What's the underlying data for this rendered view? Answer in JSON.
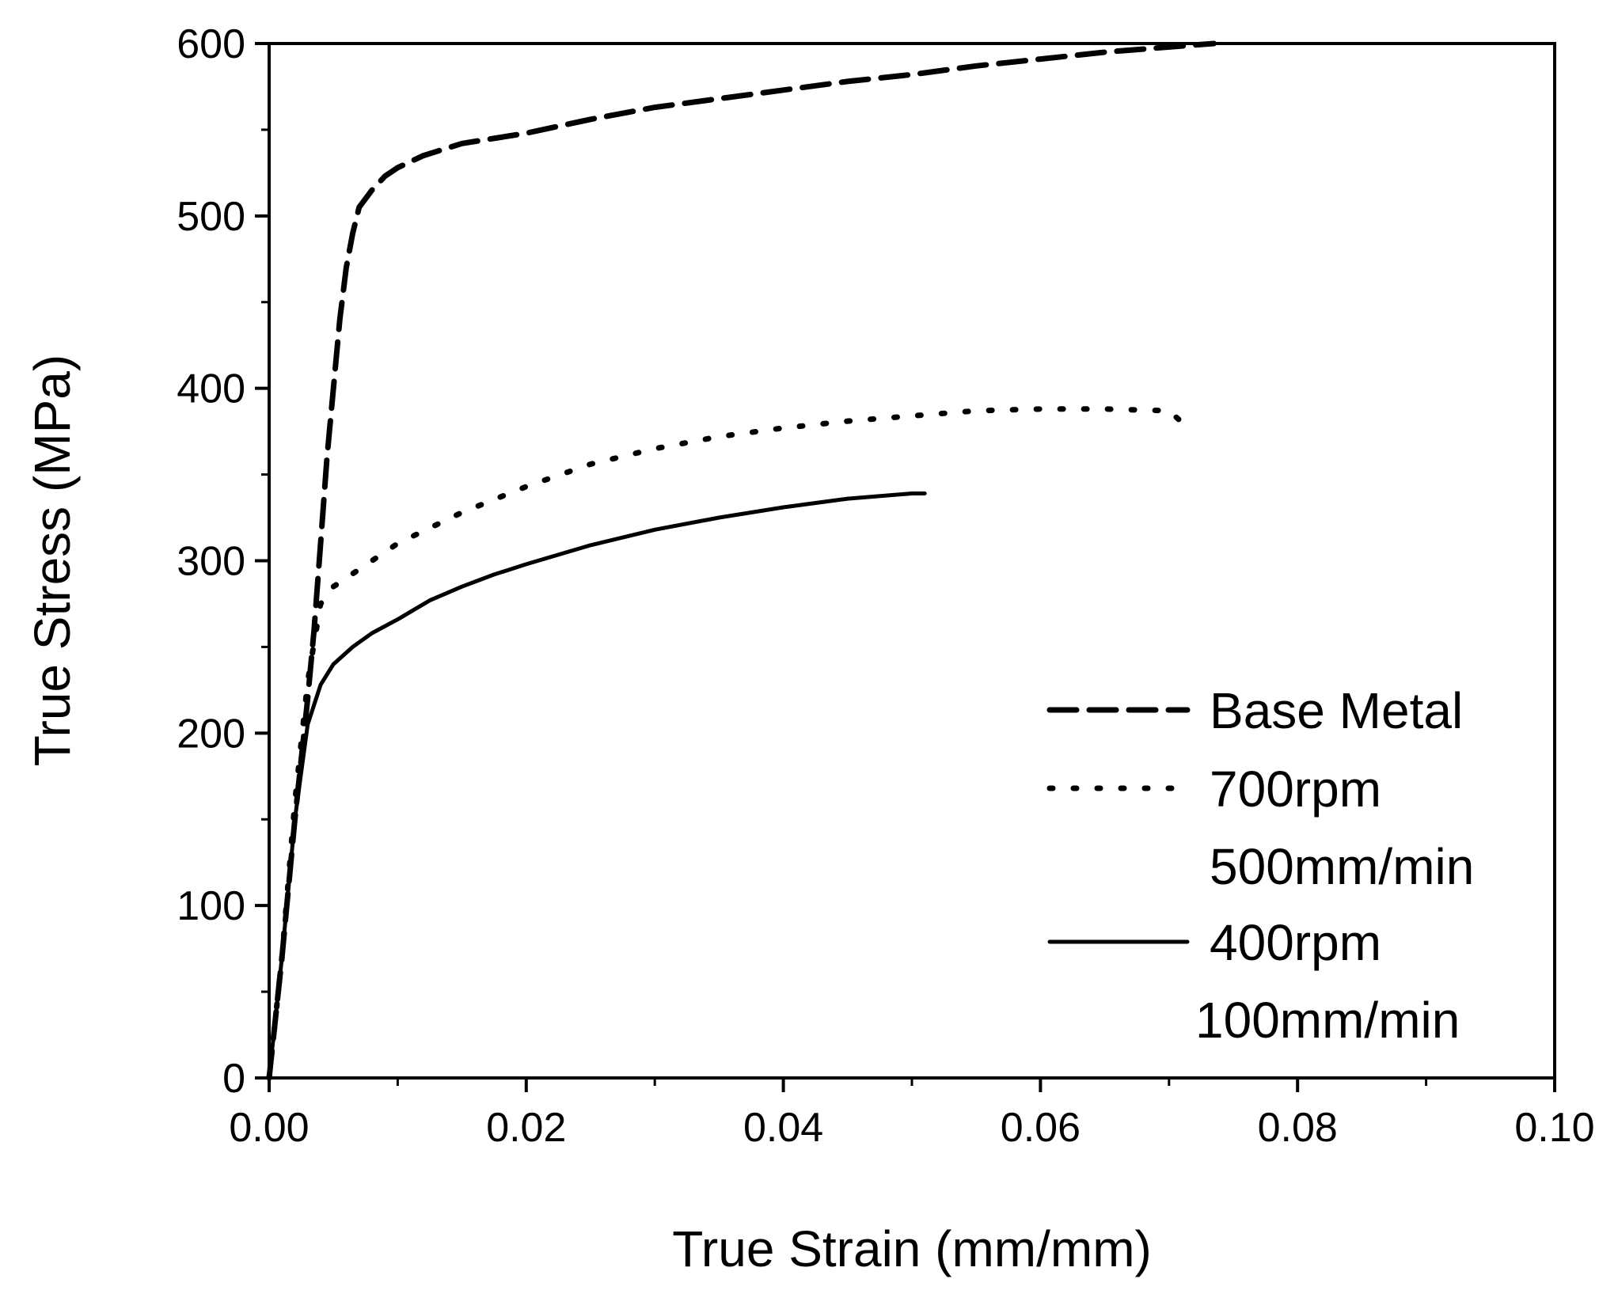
{
  "chart_data": {
    "type": "line",
    "title": "",
    "xlabel": "True Strain (mm/mm)",
    "ylabel": "True Stress (MPa)",
    "xlim": [
      0,
      0.1
    ],
    "ylim": [
      0,
      600
    ],
    "x_ticks": [
      0,
      0.02,
      0.04,
      0.06,
      0.08,
      0.1
    ],
    "x_tick_labels": [
      "0.00",
      "0.02",
      "0.04",
      "0.06",
      "0.08",
      "0.10"
    ],
    "y_ticks": [
      0,
      100,
      200,
      300,
      400,
      500,
      600
    ],
    "y_tick_labels": [
      "0",
      "100",
      "200",
      "300",
      "400",
      "500",
      "600"
    ],
    "grid": false,
    "legend_position": "bottom-right",
    "series": [
      {
        "name": "Base Metal",
        "legend_lines": [
          "Base Metal"
        ],
        "style": "dashed",
        "x": [
          0,
          0.001,
          0.002,
          0.003,
          0.0035,
          0.004,
          0.0045,
          0.005,
          0.0055,
          0.006,
          0.0065,
          0.007,
          0.008,
          0.009,
          0.01,
          0.012,
          0.015,
          0.02,
          0.025,
          0.03,
          0.035,
          0.04,
          0.045,
          0.05,
          0.055,
          0.06,
          0.065,
          0.07,
          0.0735
        ],
        "y": [
          0,
          70,
          150,
          220,
          260,
          310,
          360,
          400,
          440,
          470,
          490,
          505,
          515,
          523,
          528,
          535,
          542,
          548,
          556,
          563,
          568,
          573,
          578,
          582,
          587,
          591,
          595,
          598,
          600
        ]
      },
      {
        "name": "700rpm 500mm/min",
        "legend_lines": [
          "700rpm",
          "500mm/min"
        ],
        "style": "dotted",
        "x": [
          0,
          0.001,
          0.002,
          0.003,
          0.004,
          0.005,
          0.007,
          0.01,
          0.015,
          0.02,
          0.025,
          0.03,
          0.035,
          0.04,
          0.045,
          0.05,
          0.055,
          0.06,
          0.065,
          0.07,
          0.0715
        ],
        "y": [
          0,
          70,
          160,
          230,
          275,
          285,
          295,
          310,
          328,
          343,
          356,
          365,
          372,
          377,
          381,
          384,
          387,
          388,
          388,
          387,
          377
        ]
      },
      {
        "name": "400rpm 100mm/min",
        "legend_lines": [
          "400rpm",
          "100mm/min"
        ],
        "style": "solid",
        "x": [
          0,
          0.001,
          0.002,
          0.003,
          0.004,
          0.005,
          0.0065,
          0.008,
          0.01,
          0.0125,
          0.015,
          0.0175,
          0.02,
          0.025,
          0.03,
          0.035,
          0.04,
          0.045,
          0.05,
          0.051
        ],
        "y": [
          0,
          70,
          150,
          205,
          228,
          240,
          250,
          258,
          266,
          277,
          285,
          292,
          298,
          309,
          318,
          325,
          331,
          336,
          339,
          339
        ]
      }
    ]
  }
}
